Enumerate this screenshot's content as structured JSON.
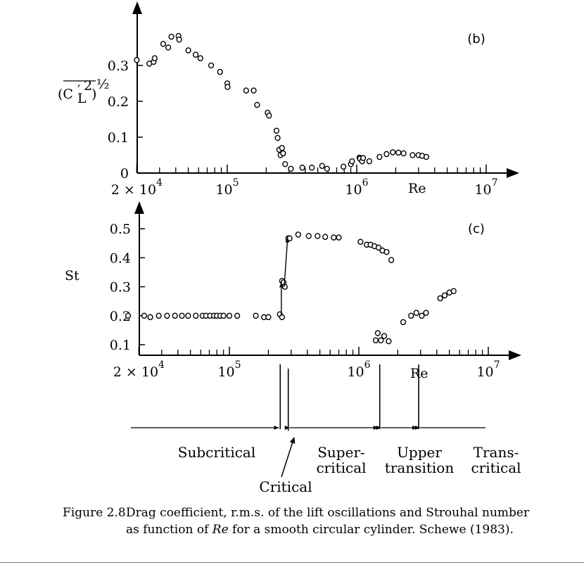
{
  "chart_data": [
    {
      "type": "scatter",
      "panel_label": "(b)",
      "ylabel_main": "(C",
      "ylabel_prime": "′",
      "ylabel_sup": "2",
      "ylabel_sub": "L",
      "ylabel_close": ")",
      "ylabel_exp": "½",
      "x_scale": "log",
      "xlim": [
        14500,
        12000000
      ],
      "ylim": [
        0,
        0.4
      ],
      "y_ticks": [
        {
          "value": 0.3,
          "label": "0.3"
        },
        {
          "value": 0.2,
          "label": "0.2"
        },
        {
          "value": 0.1,
          "label": "0.1"
        },
        {
          "value": 0,
          "label": "0"
        }
      ],
      "x_ticks": [
        {
          "value": 20000,
          "base": "2 × 10",
          "exp": "4"
        },
        {
          "value": 100000,
          "base": "10",
          "exp": "5"
        },
        {
          "value": 1000000,
          "base": "10",
          "exp": "6"
        },
        {
          "value": 10000000,
          "base": "10",
          "exp": "7"
        }
      ],
      "minor_ticks": [
        30000,
        40000,
        50000,
        60000,
        70000,
        80000,
        90000,
        200000,
        300000,
        400000,
        500000,
        600000,
        700000,
        800000,
        900000,
        2000000,
        3000000,
        4000000,
        5000000,
        6000000,
        7000000,
        8000000,
        9000000
      ],
      "xlabel": "Re",
      "xlabel_value": 3000000,
      "points": [
        [
          20000,
          0.315
        ],
        [
          25000,
          0.305
        ],
        [
          27000,
          0.31
        ],
        [
          27500,
          0.32
        ],
        [
          32000,
          0.36
        ],
        [
          35000,
          0.35
        ],
        [
          37000,
          0.38
        ],
        [
          42000,
          0.382
        ],
        [
          42500,
          0.372
        ],
        [
          50000,
          0.342
        ],
        [
          57000,
          0.33
        ],
        [
          62000,
          0.32
        ],
        [
          75000,
          0.3
        ],
        [
          88000,
          0.282
        ],
        [
          100000,
          0.25
        ],
        [
          100500,
          0.24
        ],
        [
          140000,
          0.23
        ],
        [
          160000,
          0.23
        ],
        [
          170000,
          0.19
        ],
        [
          205000,
          0.168
        ],
        [
          210000,
          0.16
        ],
        [
          240000,
          0.118
        ],
        [
          245000,
          0.098
        ],
        [
          252000,
          0.065
        ],
        [
          258000,
          0.05
        ],
        [
          265000,
          0.07
        ],
        [
          270000,
          0.055
        ],
        [
          280000,
          0.025
        ],
        [
          310000,
          0.012
        ],
        [
          380000,
          0.015
        ],
        [
          450000,
          0.015
        ],
        [
          540000,
          0.02
        ],
        [
          590000,
          0.012
        ],
        [
          790000,
          0.018
        ],
        [
          900000,
          0.025
        ],
        [
          920000,
          0.033
        ],
        [
          1050000,
          0.043
        ],
        [
          1060000,
          0.04
        ],
        [
          1100000,
          0.033
        ],
        [
          1120000,
          0.042
        ],
        [
          1250000,
          0.033
        ],
        [
          1500000,
          0.045
        ],
        [
          1700000,
          0.053
        ],
        [
          1900000,
          0.058
        ],
        [
          2100000,
          0.057
        ],
        [
          2300000,
          0.055
        ],
        [
          2700000,
          0.05
        ],
        [
          3000000,
          0.05
        ],
        [
          3200000,
          0.048
        ],
        [
          3450000,
          0.045
        ]
      ]
    },
    {
      "type": "scatter",
      "panel_label": "(c)",
      "ylabel": "St",
      "x_scale": "log",
      "xlim": [
        14500,
        12000000
      ],
      "ylim": [
        0.08,
        0.55
      ],
      "y_ticks": [
        {
          "value": 0.5,
          "label": "0.5"
        },
        {
          "value": 0.4,
          "label": "0.4"
        },
        {
          "value": 0.3,
          "label": "0.3"
        },
        {
          "value": 0.2,
          "label": "0.2"
        },
        {
          "value": 0.1,
          "label": "0.1"
        }
      ],
      "x_ticks": [
        {
          "value": 20000,
          "base": "2 × 10",
          "exp": "4"
        },
        {
          "value": 100000,
          "base": "10",
          "exp": "5"
        },
        {
          "value": 1000000,
          "base": "10",
          "exp": "6"
        },
        {
          "value": 10000000,
          "base": "10",
          "exp": "7"
        }
      ],
      "minor_ticks": [
        30000,
        40000,
        50000,
        60000,
        70000,
        80000,
        90000,
        200000,
        300000,
        400000,
        500000,
        600000,
        700000,
        800000,
        900000,
        2000000,
        3000000,
        4000000,
        5000000,
        6000000,
        7000000,
        8000000,
        9000000
      ],
      "xlabel": "Re",
      "xlabel_value": 3000000,
      "points": [
        [
          16500,
          0.2
        ],
        [
          22000,
          0.2
        ],
        [
          24500,
          0.195
        ],
        [
          28500,
          0.2
        ],
        [
          33000,
          0.2
        ],
        [
          38000,
          0.2
        ],
        [
          43000,
          0.2
        ],
        [
          48000,
          0.2
        ],
        [
          55000,
          0.2
        ],
        [
          62000,
          0.2
        ],
        [
          66000,
          0.2
        ],
        [
          71000,
          0.2
        ],
        [
          76000,
          0.2
        ],
        [
          80000,
          0.2
        ],
        [
          85000,
          0.2
        ],
        [
          90000,
          0.2
        ],
        [
          100000,
          0.2
        ],
        [
          115000,
          0.2
        ],
        [
          160000,
          0.2
        ],
        [
          185000,
          0.195
        ],
        [
          200000,
          0.195
        ],
        [
          245000,
          0.205
        ],
        [
          255000,
          0.195
        ],
        [
          255000,
          0.32
        ],
        [
          262000,
          0.315
        ],
        [
          268000,
          0.3
        ],
        [
          285000,
          0.467
        ],
        [
          292000,
          0.467
        ],
        [
          340000,
          0.48
        ],
        [
          410000,
          0.475
        ],
        [
          480000,
          0.475
        ],
        [
          550000,
          0.472
        ],
        [
          640000,
          0.47
        ],
        [
          700000,
          0.47
        ],
        [
          1030000,
          0.455
        ],
        [
          1150000,
          0.445
        ],
        [
          1230000,
          0.445
        ],
        [
          1320000,
          0.44
        ],
        [
          1420000,
          0.435
        ],
        [
          1520000,
          0.425
        ],
        [
          1640000,
          0.42
        ],
        [
          1780000,
          0.392
        ],
        [
          1400000,
          0.14
        ],
        [
          1350000,
          0.115
        ],
        [
          1480000,
          0.115
        ],
        [
          1570000,
          0.13
        ],
        [
          1700000,
          0.112
        ],
        [
          2200000,
          0.178
        ],
        [
          2530000,
          0.2
        ],
        [
          2780000,
          0.21
        ],
        [
          3060000,
          0.2
        ],
        [
          3300000,
          0.21
        ],
        [
          4250000,
          0.26
        ],
        [
          4600000,
          0.27
        ],
        [
          5000000,
          0.28
        ],
        [
          5400000,
          0.285
        ]
      ],
      "arrows": [
        {
          "from": [
            252000,
            0.2
          ],
          "to": [
            252000,
            0.315
          ]
        },
        {
          "from": [
            265000,
            0.3
          ],
          "to": [
            282000,
            0.47
          ]
        }
      ]
    }
  ],
  "regimes": {
    "boundaries": [
      247000,
      285000,
      1450000,
      2900000
    ],
    "labels": [
      {
        "id": "subcritical",
        "lines": [
          "Subcritical"
        ]
      },
      {
        "id": "supercritical",
        "lines": [
          "Super-",
          "critical"
        ]
      },
      {
        "id": "upper-transition",
        "lines": [
          "Upper",
          "transition"
        ]
      },
      {
        "id": "transcritical",
        "lines": [
          "Trans-",
          "critical"
        ]
      },
      {
        "id": "critical",
        "lines": [
          "Critical"
        ]
      }
    ]
  },
  "caption": {
    "number": "Figure 2.8",
    "text_before": "Drag coefficient, r.m.s. of the lift oscillations and Strouhal number as function of ",
    "text_italic": "Re",
    "text_after": " for a smooth circular cylinder. Schewe (1983)."
  }
}
